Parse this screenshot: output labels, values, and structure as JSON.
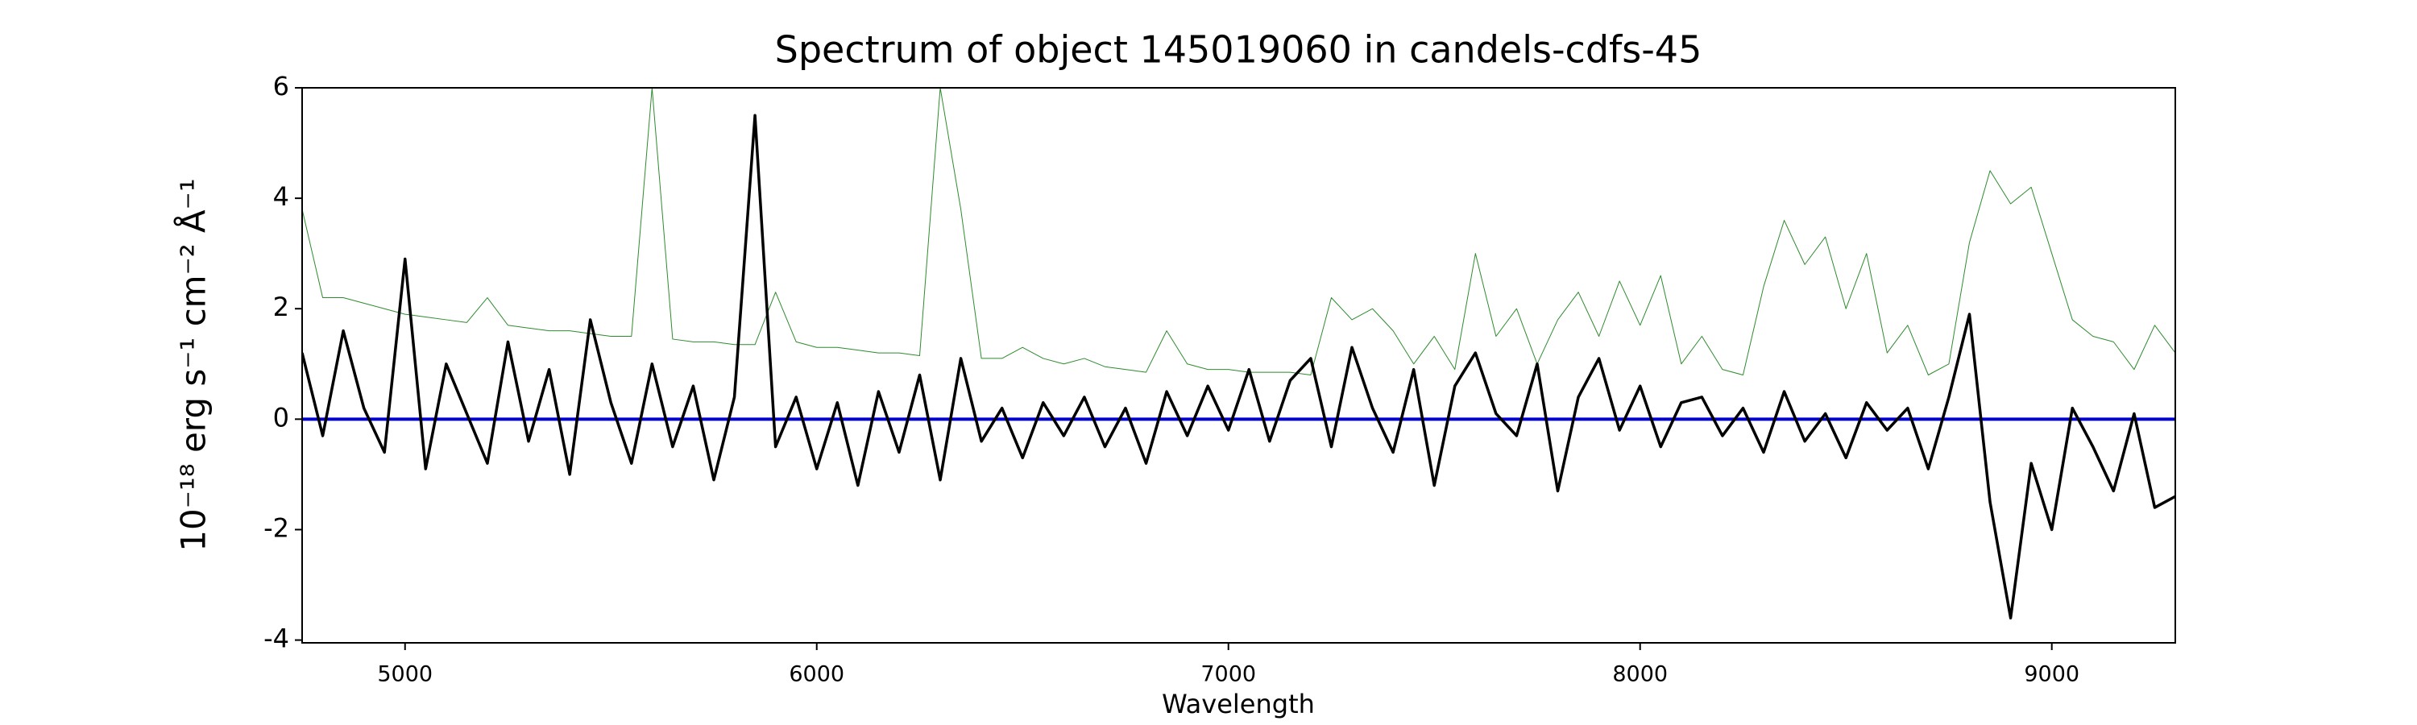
{
  "chart_data": {
    "type": "line",
    "title": "Spectrum of object 145019060 in candels-cdfs-45",
    "x_label": "Wavelength",
    "y_label": "10⁻¹⁸ erg s⁻¹ cm⁻² Å⁻¹",
    "xlim": [
      4750,
      9300
    ],
    "ylim": [
      -4.05,
      6
    ],
    "xticks": [
      5000,
      6000,
      7000,
      8000,
      9000
    ],
    "yticks": [
      -4,
      -2,
      0,
      2,
      4,
      6
    ],
    "grid": false,
    "series": [
      {
        "color": "#2e8b2e",
        "width": 1,
        "x": [
          4750,
          4800,
          4850,
          4900,
          4950,
          5000,
          5050,
          5100,
          5150,
          5200,
          5250,
          5300,
          5350,
          5400,
          5450,
          5500,
          5550,
          5600,
          5650,
          5700,
          5750,
          5800,
          5850,
          5900,
          5950,
          6000,
          6050,
          6100,
          6150,
          6200,
          6250,
          6300,
          6350,
          6400,
          6450,
          6500,
          6550,
          6600,
          6650,
          6700,
          6750,
          6800,
          6850,
          6900,
          6950,
          7000,
          7050,
          7100,
          7150,
          7200,
          7250,
          7300,
          7350,
          7400,
          7450,
          7500,
          7550,
          7600,
          7650,
          7700,
          7750,
          7800,
          7850,
          7900,
          7950,
          8000,
          8050,
          8100,
          8150,
          8200,
          8250,
          8300,
          8350,
          8400,
          8450,
          8500,
          8550,
          8600,
          8650,
          8700,
          8750,
          8800,
          8850,
          8900,
          8950,
          9000,
          9050,
          9100,
          9150,
          9200,
          9250,
          9300
        ],
        "values": [
          3.8,
          2.2,
          2.2,
          2.1,
          2.0,
          1.9,
          1.85,
          1.8,
          1.75,
          2.2,
          1.7,
          1.65,
          1.6,
          1.6,
          1.55,
          1.5,
          1.5,
          6,
          1.45,
          1.4,
          1.4,
          1.35,
          1.35,
          2.3,
          1.4,
          1.3,
          1.3,
          1.25,
          1.2,
          1.2,
          1.15,
          6,
          3.8,
          1.1,
          1.1,
          1.3,
          1.1,
          1.0,
          1.1,
          0.95,
          0.9,
          0.85,
          1.6,
          1.0,
          0.9,
          0.9,
          0.85,
          0.85,
          0.85,
          0.8,
          2.2,
          1.8,
          2.0,
          1.6,
          1.0,
          1.5,
          0.9,
          3.0,
          1.5,
          2.0,
          1.0,
          1.8,
          2.3,
          1.5,
          2.5,
          1.7,
          2.6,
          1.0,
          1.5,
          0.9,
          0.8,
          2.4,
          3.6,
          2.8,
          3.3,
          2.0,
          3.0,
          1.2,
          1.7,
          0.8,
          1.0,
          3.2,
          4.5,
          3.9,
          4.2,
          3.0,
          1.8,
          1.5,
          1.4,
          0.9,
          1.7,
          1.2
        ]
      },
      {
        "color": "#0000cc",
        "width": 4,
        "x": [
          4750,
          9300
        ],
        "values": [
          0,
          0
        ]
      },
      {
        "color": "#000000",
        "width": 3.5,
        "x": [
          4750,
          4800,
          4850,
          4900,
          4950,
          5000,
          5050,
          5100,
          5150,
          5200,
          5250,
          5300,
          5350,
          5400,
          5450,
          5500,
          5550,
          5600,
          5650,
          5700,
          5750,
          5800,
          5850,
          5900,
          5950,
          6000,
          6050,
          6100,
          6150,
          6200,
          6250,
          6300,
          6350,
          6400,
          6450,
          6500,
          6550,
          6600,
          6650,
          6700,
          6750,
          6800,
          6850,
          6900,
          6950,
          7000,
          7050,
          7100,
          7150,
          7200,
          7250,
          7300,
          7350,
          7400,
          7450,
          7500,
          7550,
          7600,
          7650,
          7700,
          7750,
          7800,
          7850,
          7900,
          7950,
          8000,
          8050,
          8100,
          8150,
          8200,
          8250,
          8300,
          8350,
          8400,
          8450,
          8500,
          8550,
          8600,
          8650,
          8700,
          8750,
          8800,
          8850,
          8900,
          8950,
          9000,
          9050,
          9100,
          9150,
          9200,
          9250,
          9300
        ],
        "values": [
          1.2,
          -0.3,
          1.6,
          0.2,
          -0.6,
          2.9,
          -0.9,
          1.0,
          0.1,
          -0.8,
          1.4,
          -0.4,
          0.9,
          -1.0,
          1.8,
          0.3,
          -0.8,
          1.0,
          -0.5,
          0.6,
          -1.1,
          0.4,
          5.5,
          -0.5,
          0.4,
          -0.9,
          0.3,
          -1.2,
          0.5,
          -0.6,
          0.8,
          -1.1,
          1.1,
          -0.4,
          0.2,
          -0.7,
          0.3,
          -0.3,
          0.4,
          -0.5,
          0.2,
          -0.8,
          0.5,
          -0.3,
          0.6,
          -0.2,
          0.9,
          -0.4,
          0.7,
          1.1,
          -0.5,
          1.3,
          0.2,
          -0.6,
          0.9,
          -1.2,
          0.6,
          1.2,
          0.1,
          -0.3,
          1.0,
          -1.3,
          0.4,
          1.1,
          -0.2,
          0.6,
          -0.5,
          0.3,
          0.4,
          -0.3,
          0.2,
          -0.6,
          0.5,
          -0.4,
          0.1,
          -0.7,
          0.3,
          -0.2,
          0.2,
          -0.9,
          0.4,
          1.9,
          -1.5,
          -3.6,
          -0.8,
          -2.0,
          0.2,
          -0.5,
          -1.3,
          0.1,
          -1.6,
          -1.4
        ]
      }
    ]
  }
}
